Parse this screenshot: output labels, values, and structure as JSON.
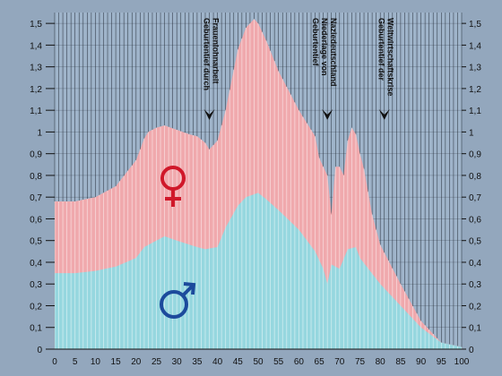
{
  "chart_data": {
    "type": "area",
    "x_ticks": [
      0,
      5,
      10,
      15,
      20,
      25,
      30,
      35,
      40,
      45,
      50,
      55,
      60,
      65,
      70,
      75,
      80,
      85,
      90,
      95,
      100
    ],
    "y_ticks": [
      0,
      0.1,
      0.2,
      0.3,
      0.4,
      0.5,
      0.6,
      0.7,
      0.8,
      0.9,
      1,
      1.1,
      1.2,
      1.3,
      1.4,
      1.5
    ],
    "y_tick_labels": [
      "0",
      "0,1",
      "0,2",
      "0,3",
      "0,4",
      "0,5",
      "0,6",
      "0,7",
      "0,8",
      "0,9",
      "1",
      "1,1",
      "1,2",
      "1,3",
      "1,4",
      "1,5"
    ],
    "xlim": [
      0,
      100
    ],
    "ylim": [
      0,
      1.55
    ],
    "grid": true,
    "legend": "symbols inside plot",
    "series": [
      {
        "symbol": "♂",
        "color": "#96d7df",
        "x": [
          0,
          5,
          10,
          15,
          20,
          22,
          25,
          27,
          30,
          35,
          37,
          40,
          42,
          45,
          47,
          50,
          52,
          55,
          60,
          64,
          66,
          67,
          68,
          69,
          70,
          72,
          74,
          75,
          80,
          85,
          90,
          95,
          100
        ],
        "values": [
          0.35,
          0.35,
          0.36,
          0.38,
          0.42,
          0.47,
          0.5,
          0.52,
          0.5,
          0.47,
          0.46,
          0.47,
          0.56,
          0.66,
          0.7,
          0.72,
          0.69,
          0.64,
          0.55,
          0.45,
          0.37,
          0.3,
          0.39,
          0.38,
          0.37,
          0.46,
          0.47,
          0.42,
          0.3,
          0.2,
          0.1,
          0.03,
          0.01
        ]
      },
      {
        "symbol": "♀",
        "color": "#f0a9ad",
        "x": [
          0,
          5,
          10,
          15,
          20,
          22,
          23,
          25,
          27,
          30,
          33,
          35,
          37,
          38,
          40,
          42,
          45,
          47,
          49,
          50,
          52,
          55,
          60,
          64,
          65,
          67,
          68,
          69,
          70,
          71,
          72,
          73,
          74,
          75,
          76,
          78,
          80,
          85,
          90,
          95,
          100
        ],
        "values": [
          0.68,
          0.68,
          0.7,
          0.75,
          0.87,
          0.97,
          1.0,
          1.02,
          1.03,
          1.01,
          0.99,
          0.98,
          0.95,
          0.92,
          0.96,
          1.1,
          1.38,
          1.48,
          1.52,
          1.5,
          1.42,
          1.28,
          1.1,
          0.98,
          0.88,
          0.8,
          0.62,
          0.84,
          0.84,
          0.8,
          0.96,
          1.02,
          0.99,
          0.9,
          0.83,
          0.62,
          0.48,
          0.3,
          0.13,
          0.03,
          0.01
        ]
      }
    ],
    "annotations": [
      {
        "lines": [
          "Geburtentief durch",
          "Frauenlohnarbeit"
        ],
        "x": 38
      },
      {
        "lines": [
          "Geburtentief",
          "Niederlage von",
          "Naziedeutschland"
        ],
        "x": 67
      },
      {
        "lines": [
          "Geburtentief der",
          "Weltwirtschaftskrise"
        ],
        "x": 81
      }
    ]
  }
}
